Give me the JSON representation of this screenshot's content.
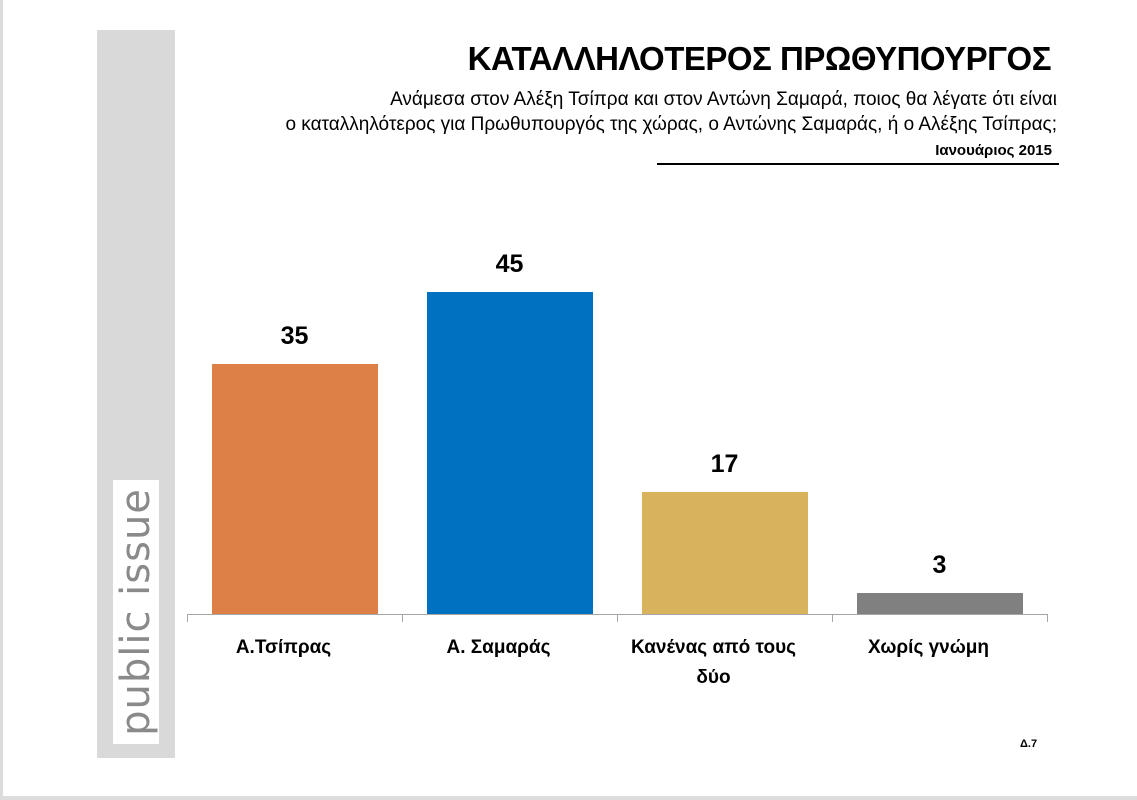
{
  "header": {
    "title": "ΚΑΤΑΛΛΗΛΟΤΕΡΟΣ ΠΡΩΘΥΠΟΥΡΓΟΣ",
    "subtitle_line1": "Ανάμεσα στον Αλέξη Τσίπρα και στον Αντώνη Σαμαρά, ποιος θα λέγατε ότι είναι",
    "subtitle_line2": "ο καταλληλότερος για Πρωθυπουργός της χώρας, ο Αντώνης Σαμαράς, ή ο Αλέξης Τσίπρας;",
    "date": "Ιανουάριος 2015"
  },
  "logo": {
    "text": "public issue"
  },
  "footer": {
    "page_code": "Δ.7"
  },
  "colors": {
    "tsipras": "#DD8047",
    "samaras": "#0070C0",
    "neither": "#D9B25E",
    "no_opinion": "#808080",
    "band": "#D9D9D9",
    "axis": "#A6A6A6"
  },
  "chart_data": {
    "type": "bar",
    "title": "ΚΑΤΑΛΛΗΛΟΤΕΡΟΣ ΠΡΩΘΥΠΟΥΡΓΟΣ",
    "subtitle": "Ανάμεσα στον Αλέξη Τσίπρα και στον Αντώνη Σαμαρά, ποιος θα λέγατε ότι είναι ο καταλληλότερος για Πρωθυπουργός της χώρας, ο Αντώνης Σαμαράς, ή ο Αλέξης Τσίπρας; — Ιανουάριος 2015",
    "categories": [
      "Α.Τσίπρας",
      "Α. Σαμαράς",
      "Κανένας από τους δύο",
      "Χωρίς γνώμη"
    ],
    "values": [
      35,
      45,
      17,
      3
    ],
    "labels": [
      "35",
      "45",
      "17",
      "3"
    ],
    "bar_colors": [
      "#DD8047",
      "#0070C0",
      "#D9B25E",
      "#808080"
    ],
    "xlabel": "",
    "ylabel": "",
    "ylim": [
      0,
      50
    ],
    "grid": false,
    "legend": "none",
    "data_labels": true
  },
  "bars": [
    {
      "label": "Α.Τσίπρας",
      "value": "35"
    },
    {
      "label": "Α. Σαμαράς",
      "value": "45"
    },
    {
      "label": "Κανένας από τους δύο",
      "value": "17"
    },
    {
      "label": "Χωρίς γνώμη",
      "value": "3"
    }
  ]
}
